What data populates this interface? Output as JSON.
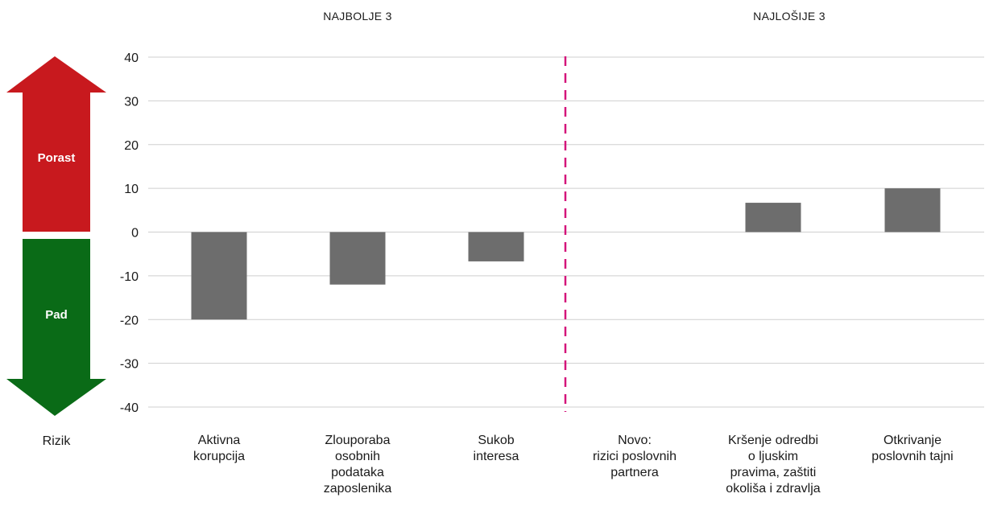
{
  "chart_data": {
    "type": "bar",
    "groups": [
      "NAJBOLJE 3",
      "NAJLOŠIJE 3"
    ],
    "categories": [
      [
        "Aktivna",
        "korupcija"
      ],
      [
        "Zlouporaba",
        "osobnih",
        "podataka",
        "zaposlenika"
      ],
      [
        "Sukob",
        "interesa"
      ],
      [
        "Novo:",
        "rizici poslovnih",
        "partnera"
      ],
      [
        "Kršenje odredbi",
        "o ljuskim",
        "pravima, zaštiti",
        "okoliša i zdravlja"
      ],
      [
        "Otkrivanje",
        "poslovnih tajni"
      ]
    ],
    "values": [
      -20,
      -12,
      -6.7,
      null,
      6.7,
      10
    ],
    "ylim": [
      -40,
      40
    ],
    "yticks": [
      40,
      30,
      20,
      10,
      0,
      -10,
      -20,
      -30,
      -40
    ],
    "grid": true,
    "bar_color": "#6d6d6d",
    "divider_color": "#d4147a",
    "divider_after_category": 2
  },
  "legend_arrow": {
    "up_label": "Porast",
    "down_label": "Pad",
    "up_color": "#c8191e",
    "down_color": "#0a6b17",
    "axis_label": "Rizik"
  }
}
